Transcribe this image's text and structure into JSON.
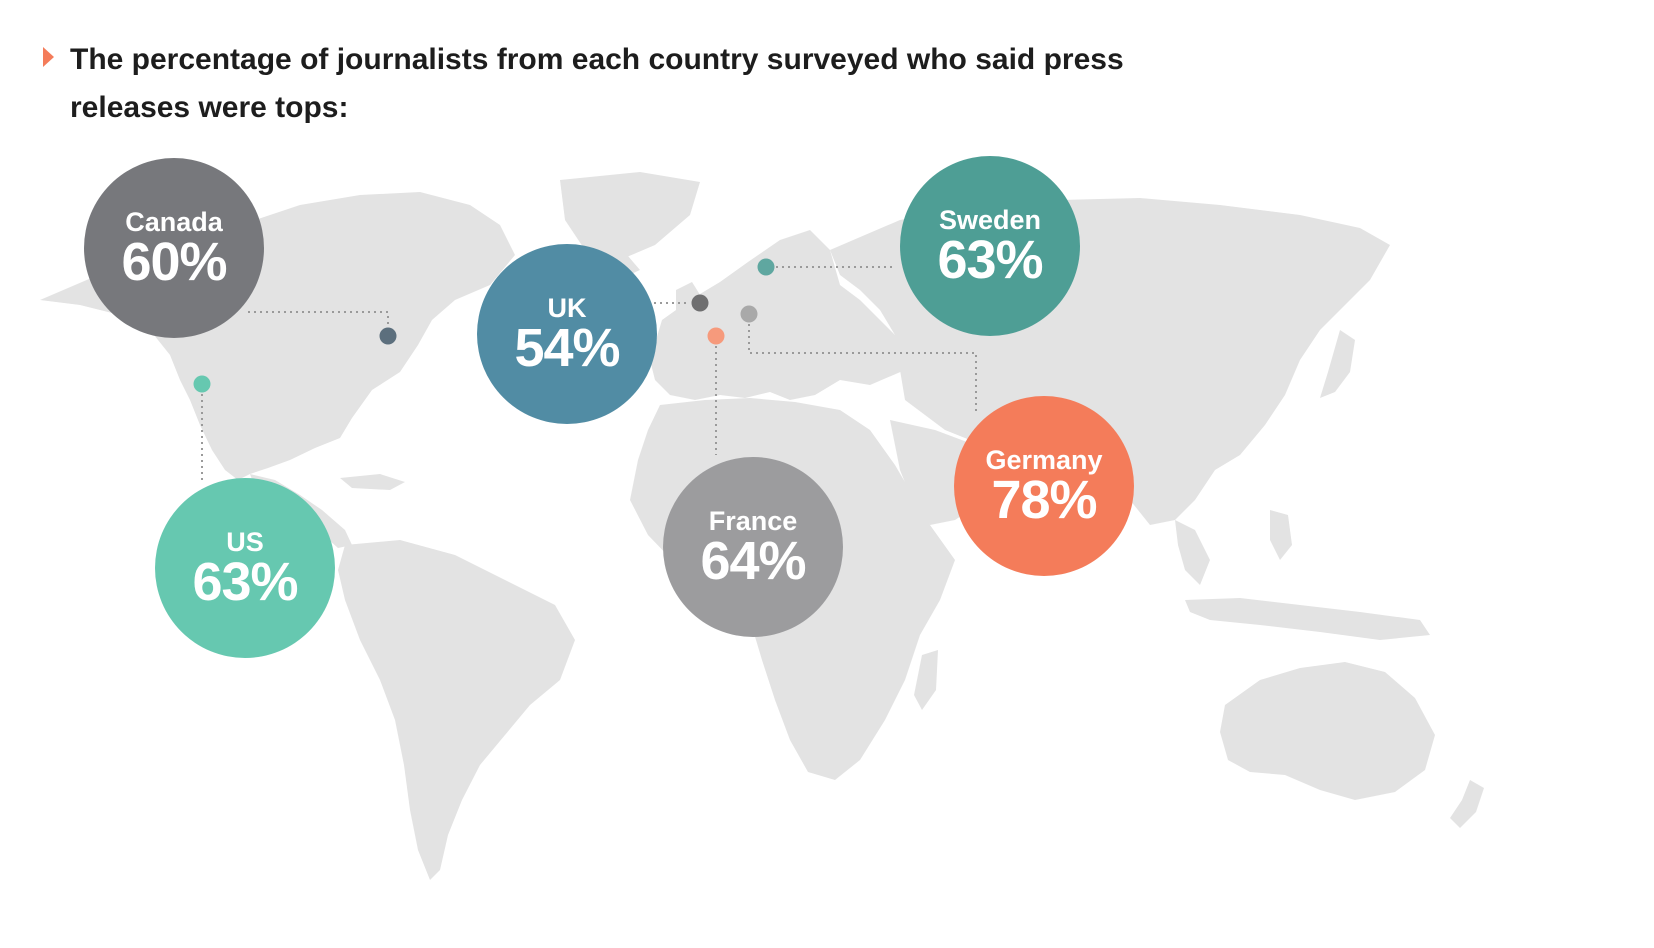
{
  "title": "The percentage of journalists from each country surveyed who said press releases were tops:",
  "colors": {
    "land": "#e3e3e3",
    "arrow": "#f47c5a",
    "leader": "#9a9a9a"
  },
  "countries": [
    {
      "name": "Canada",
      "value": 60,
      "label": "60%",
      "bubble_color": "#77787c",
      "dot_color": "#5c6f7d"
    },
    {
      "name": "US",
      "value": 63,
      "label": "63%",
      "bubble_color": "#66c8b0",
      "dot_color": "#66c8b0"
    },
    {
      "name": "UK",
      "value": 54,
      "label": "54%",
      "bubble_color": "#518ca4",
      "dot_color": "#6f6f70"
    },
    {
      "name": "France",
      "value": 64,
      "label": "64%",
      "bubble_color": "#9c9c9e",
      "dot_color": "#f69a7c"
    },
    {
      "name": "Sweden",
      "value": 63,
      "label": "63%",
      "bubble_color": "#4e9e95",
      "dot_color": "#5fa7a0"
    },
    {
      "name": "Germany",
      "value": 78,
      "label": "78%",
      "bubble_color": "#f47c5a",
      "dot_color": "#a9a9a9"
    }
  ]
}
